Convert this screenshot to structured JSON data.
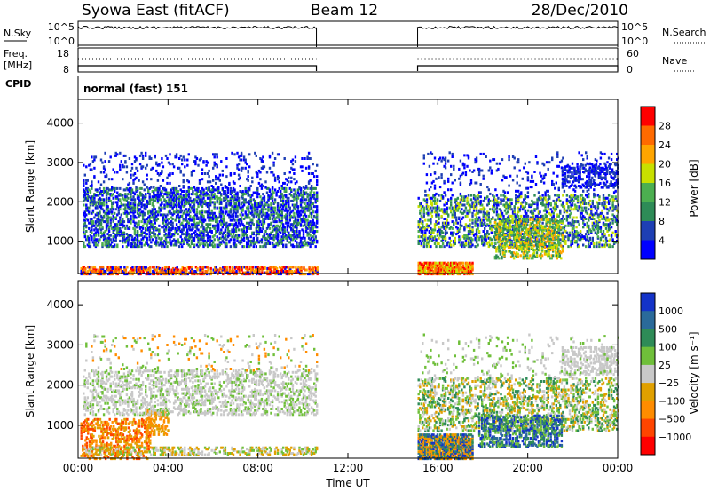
{
  "header": {
    "station": "Syowa East (fitACF)",
    "beam": "Beam 12",
    "date": "28/Dec/2010"
  },
  "noise_panel": {
    "left_label": "N.Sky",
    "right_label": "N.Search",
    "ticks": [
      "10^5",
      "10^0"
    ]
  },
  "freq_panel": {
    "left_label_1": "Freq.",
    "left_label_2": "[MHz]",
    "left_ticks": [
      "18",
      "8"
    ],
    "right_label": "Nave",
    "right_ticks": [
      "60",
      "0"
    ]
  },
  "cpid_panel": {
    "label": "CPID",
    "mode": "normal (fast) 151"
  },
  "colors": {
    "power": [
      "#0000ff",
      "#1e3fb4",
      "#2e8b57",
      "#4caf50",
      "#c8e000",
      "#ffa500",
      "#ff6a00",
      "#ff0000"
    ],
    "velocity": [
      "#1433c8",
      "#2a6a9a",
      "#2e8b57",
      "#6fbf3a",
      "#c8c8c8",
      "#e0a000",
      "#ff8c00",
      "#ff4500",
      "#ff0000"
    ]
  },
  "chart_data": [
    {
      "type": "heatmap",
      "title": "Power",
      "ylabel": "Slant Range [km]",
      "xlabel": "",
      "ylim": [
        180,
        4600
      ],
      "xlim": [
        0,
        24
      ],
      "yticks": [
        "1000",
        "2000",
        "3000",
        "4000"
      ],
      "xticks": [
        "00:00",
        "04:00",
        "08:00",
        "12:00",
        "16:00",
        "20:00",
        "00:00"
      ],
      "colorbar": {
        "label": "Power [dB]",
        "ticks": [
          "4",
          "8",
          "12",
          "16",
          "20",
          "24",
          "28"
        ]
      },
      "data_gaps": [
        [
          10.6,
          15.1
        ]
      ]
    },
    {
      "type": "heatmap",
      "title": "Velocity",
      "ylabel": "Slant Range [km]",
      "xlabel": "Time UT",
      "ylim": [
        180,
        4600
      ],
      "xlim": [
        0,
        24
      ],
      "yticks": [
        "1000",
        "2000",
        "3000",
        "4000"
      ],
      "xticks": [
        "00:00",
        "04:00",
        "08:00",
        "12:00",
        "16:00",
        "20:00",
        "00:00"
      ],
      "colorbar": {
        "label": "Velocity [m s⁻¹]",
        "ticks": [
          "1000",
          "500",
          "100",
          "25",
          "−25",
          "−100",
          "−500",
          "−1000"
        ]
      },
      "data_gaps": [
        [
          10.6,
          15.1
        ]
      ]
    }
  ]
}
